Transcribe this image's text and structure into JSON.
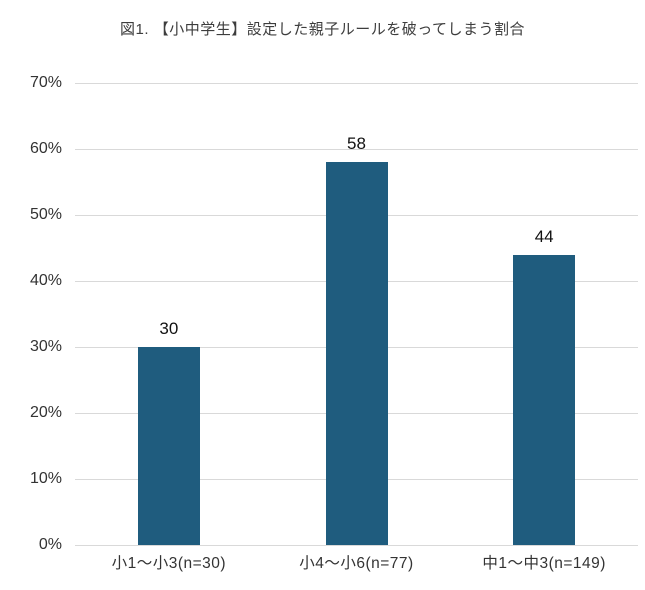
{
  "chart_data": {
    "type": "bar",
    "title": "図1. 【小中学生】設定した親子ルールを破ってしまう割合",
    "categories": [
      "小1～小3(n=30)",
      "小4～小6(n=77)",
      "中1～中3(n=149)"
    ],
    "values": [
      30,
      58,
      44
    ],
    "value_labels": [
      "30",
      "58",
      "44"
    ],
    "xlabel": "",
    "ylabel": "",
    "ylim": [
      0,
      70
    ],
    "y_ticks": [
      0,
      10,
      20,
      30,
      40,
      50,
      60,
      70
    ],
    "y_tick_labels": [
      "0%",
      "10%",
      "20%",
      "30%",
      "40%",
      "50%",
      "60%",
      "70%"
    ],
    "grid": "horizontal",
    "legend": "none",
    "colors": {
      "bar": "#1f5c7e",
      "gridline": "#d9d9d9",
      "background": "#ffffff",
      "title_text": "#3d3d3d",
      "tick_text": "#333333",
      "value_text": "#111111"
    }
  }
}
